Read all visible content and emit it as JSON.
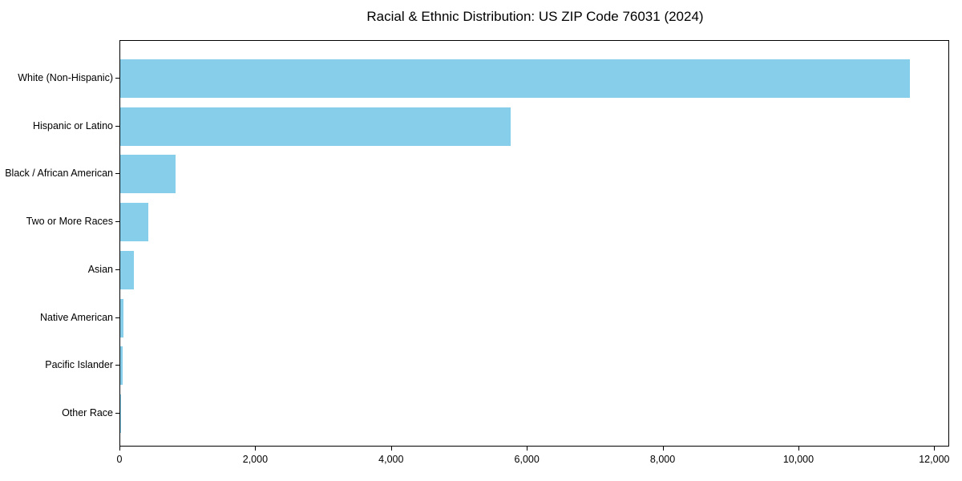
{
  "page": {
    "background_color": "#ffffff",
    "text_color": "#000000"
  },
  "chart_data": {
    "type": "bar",
    "orientation": "horizontal",
    "title": "Racial & Ethnic Distribution: US ZIP Code 76031 (2024)",
    "categories": [
      "White (Non-Hispanic)",
      "Hispanic or Latino",
      "Black / African American",
      "Two or More Races",
      "Asian",
      "Native American",
      "Pacific Islander",
      "Other Race"
    ],
    "values": [
      11630,
      5755,
      810,
      415,
      200,
      50,
      30,
      8
    ],
    "xlabel": "",
    "ylabel": "",
    "xlim": [
      0,
      12220
    ],
    "xticks": [
      0,
      2000,
      4000,
      6000,
      8000,
      10000,
      12000
    ],
    "xtick_labels": [
      "0",
      "2,000",
      "4,000",
      "6,000",
      "8,000",
      "10,000",
      "12,000"
    ],
    "bar_color": "#87CEEB",
    "axis_color": "#000000",
    "text_color": "#000000",
    "grid": false,
    "legend": null,
    "largest_bar_on_top": true
  }
}
